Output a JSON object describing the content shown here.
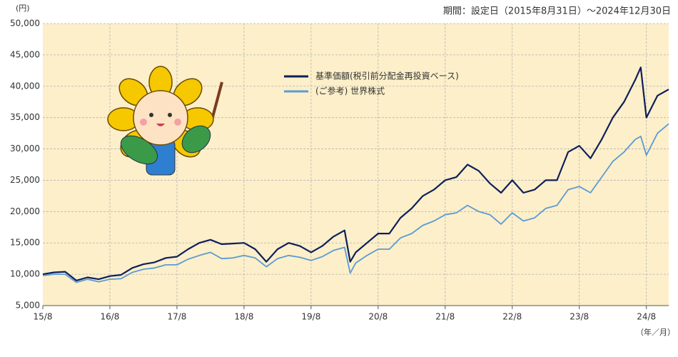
{
  "chart_data": {
    "type": "line",
    "subtitle": "期間：設定日（2015年8月31日）～2024年12月30日",
    "y_unit_label": "(円)",
    "x_unit_label": "（年／月）",
    "x": [
      "2015-08",
      "2015-10",
      "2015-12",
      "2016-02",
      "2016-04",
      "2016-06",
      "2016-08",
      "2016-10",
      "2016-12",
      "2017-02",
      "2017-04",
      "2017-06",
      "2017-08",
      "2017-10",
      "2017-12",
      "2018-02",
      "2018-04",
      "2018-06",
      "2018-08",
      "2018-10",
      "2018-12",
      "2019-02",
      "2019-04",
      "2019-06",
      "2019-08",
      "2019-10",
      "2019-12",
      "2020-02",
      "2020-03",
      "2020-04",
      "2020-06",
      "2020-08",
      "2020-10",
      "2020-12",
      "2021-02",
      "2021-04",
      "2021-06",
      "2021-08",
      "2021-10",
      "2021-12",
      "2022-02",
      "2022-04",
      "2022-06",
      "2022-08",
      "2022-10",
      "2022-12",
      "2023-02",
      "2023-04",
      "2023-06",
      "2023-08",
      "2023-10",
      "2023-12",
      "2024-02",
      "2024-04",
      "2024-06",
      "2024-07",
      "2024-08",
      "2024-10",
      "2024-12"
    ],
    "series": [
      {
        "name": "基準価額(税引前分配金再投資ベース)",
        "color": "#0d1f5c",
        "values": [
          10000,
          10300,
          10400,
          9000,
          9500,
          9200,
          9700,
          9900,
          11000,
          11600,
          11900,
          12600,
          12800,
          14000,
          15000,
          15500,
          14800,
          14900,
          15000,
          14000,
          12000,
          14000,
          15000,
          14500,
          13500,
          14500,
          16000,
          17000,
          12000,
          13500,
          15000,
          16500,
          16500,
          19000,
          20500,
          22500,
          23500,
          25000,
          25500,
          27500,
          26500,
          24500,
          23000,
          25000,
          23000,
          23500,
          25000,
          25000,
          29500,
          30500,
          28500,
          31500,
          35000,
          37500,
          41000,
          43000,
          35000,
          38500,
          39500
        ]
      },
      {
        "name": "(ご参考) 世界株式",
        "color": "#5b9bd5",
        "values": [
          9800,
          10000,
          10000,
          8700,
          9200,
          8800,
          9200,
          9300,
          10300,
          10800,
          11000,
          11500,
          11500,
          12400,
          13000,
          13500,
          12500,
          12600,
          13000,
          12600,
          11200,
          12500,
          13000,
          12700,
          12200,
          12800,
          13800,
          14300,
          10200,
          11800,
          13000,
          14000,
          14000,
          15800,
          16500,
          17800,
          18500,
          19500,
          19800,
          21000,
          20000,
          19500,
          18000,
          19800,
          18500,
          19000,
          20500,
          21000,
          23500,
          24000,
          23000,
          25500,
          28000,
          29500,
          31500,
          32000,
          29000,
          32500,
          34000
        ]
      }
    ],
    "xlim": [
      "2015-08",
      "2024-12"
    ],
    "xticks": [
      {
        "value": "2015-08",
        "label": "15/8"
      },
      {
        "value": "2016-08",
        "label": "16/8"
      },
      {
        "value": "2017-08",
        "label": "17/8"
      },
      {
        "value": "2018-08",
        "label": "18/8"
      },
      {
        "value": "2019-08",
        "label": "19/8"
      },
      {
        "value": "2020-08",
        "label": "20/8"
      },
      {
        "value": "2021-08",
        "label": "21/8"
      },
      {
        "value": "2022-08",
        "label": "22/8"
      },
      {
        "value": "2023-08",
        "label": "23/8"
      },
      {
        "value": "2024-08",
        "label": "24/8"
      }
    ],
    "ylim": [
      5000,
      50000
    ],
    "yticks": [
      {
        "value": 5000,
        "label": "5,000"
      },
      {
        "value": 10000,
        "label": "10,000"
      },
      {
        "value": 15000,
        "label": "15,000"
      },
      {
        "value": 20000,
        "label": "20,000"
      },
      {
        "value": 25000,
        "label": "25,000"
      },
      {
        "value": 30000,
        "label": "30,000"
      },
      {
        "value": 35000,
        "label": "35,000"
      },
      {
        "value": 40000,
        "label": "40,000"
      },
      {
        "value": 45000,
        "label": "45,000"
      },
      {
        "value": 50000,
        "label": "50,000"
      }
    ],
    "grid": true,
    "background": "#fcefc9"
  }
}
